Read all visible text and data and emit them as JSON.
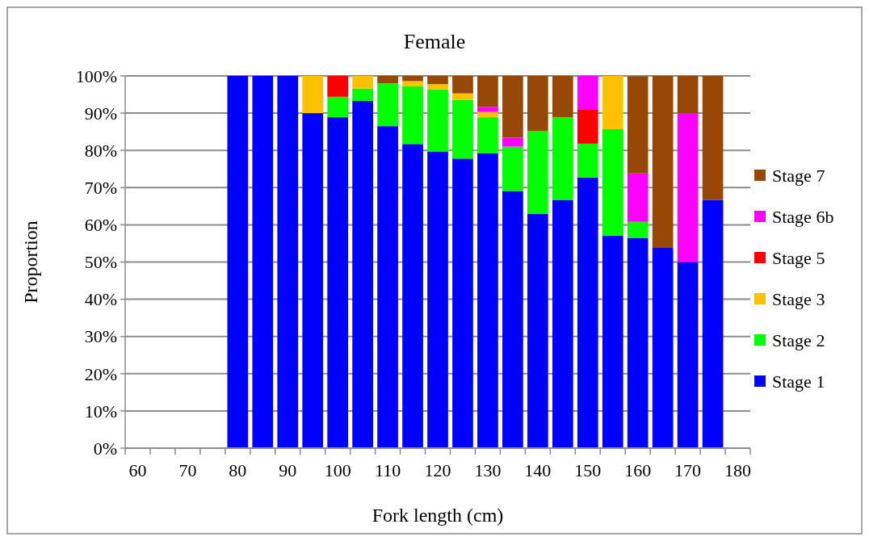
{
  "chart_data": {
    "type": "bar",
    "stacked": true,
    "title": "Female",
    "xlabel": "Fork length (cm)",
    "ylabel": "Proportion",
    "categories": [
      "60",
      null,
      "70",
      null,
      "80",
      null,
      "90",
      null,
      "100",
      null,
      "110",
      null,
      "120",
      null,
      "130",
      null,
      "140",
      null,
      "150",
      null,
      "160",
      null,
      "170",
      null,
      "180"
    ],
    "series": [
      {
        "name": "Stage 1",
        "color": "#0000ff",
        "values": [
          null,
          null,
          null,
          null,
          100,
          100,
          100,
          90,
          88.9,
          93.3,
          86.5,
          81.7,
          79.7,
          77.8,
          79.2,
          69.1,
          63.0,
          66.7,
          72.7,
          57.1,
          56.5,
          53.8,
          50,
          66.7,
          null
        ]
      },
      {
        "name": "Stage 2",
        "color": "#00ff00",
        "values": [
          null,
          null,
          null,
          null,
          null,
          null,
          null,
          null,
          5.5,
          3.3,
          11.5,
          15.5,
          16.7,
          15.8,
          9.7,
          11.9,
          22.2,
          22.2,
          9.1,
          28.6,
          4.3,
          null,
          null,
          null,
          null
        ]
      },
      {
        "name": "Stage 3",
        "color": "#ffc000",
        "values": [
          null,
          null,
          null,
          null,
          null,
          null,
          null,
          10,
          null,
          3.4,
          null,
          1.4,
          1.4,
          1.7,
          1.4,
          null,
          null,
          null,
          null,
          14.3,
          null,
          null,
          null,
          null,
          null
        ]
      },
      {
        "name": "Stage 5",
        "color": "#ff0000",
        "values": [
          null,
          null,
          null,
          null,
          null,
          null,
          null,
          null,
          5.6,
          null,
          null,
          null,
          null,
          null,
          null,
          null,
          null,
          null,
          9.1,
          null,
          null,
          null,
          null,
          null,
          null
        ]
      },
      {
        "name": "Stage 6b",
        "color": "#ff00ff",
        "values": [
          null,
          null,
          null,
          null,
          null,
          null,
          null,
          null,
          null,
          null,
          null,
          null,
          null,
          null,
          1.4,
          2.4,
          null,
          null,
          9.1,
          null,
          13.0,
          null,
          40,
          null,
          null
        ]
      },
      {
        "name": "Stage 7",
        "color": "#974706",
        "values": [
          null,
          null,
          null,
          null,
          null,
          null,
          null,
          null,
          null,
          null,
          2.0,
          1.4,
          2.2,
          4.7,
          8.3,
          16.6,
          14.8,
          11.1,
          null,
          null,
          26.1,
          46.2,
          10,
          33.3,
          null
        ]
      }
    ],
    "ylim": [
      0,
      100
    ],
    "yticks": [
      {
        "value": 0,
        "label": "0%"
      },
      {
        "value": 10,
        "label": "10%"
      },
      {
        "value": 20,
        "label": "20%"
      },
      {
        "value": 30,
        "label": "30%"
      },
      {
        "value": 40,
        "label": "40%"
      },
      {
        "value": 50,
        "label": "50%"
      },
      {
        "value": 60,
        "label": "60%"
      },
      {
        "value": 70,
        "label": "70%"
      },
      {
        "value": 80,
        "label": "80%"
      },
      {
        "value": 90,
        "label": "90%"
      },
      {
        "value": 100,
        "label": "100%"
      }
    ],
    "grid": "y",
    "legend": "right"
  }
}
